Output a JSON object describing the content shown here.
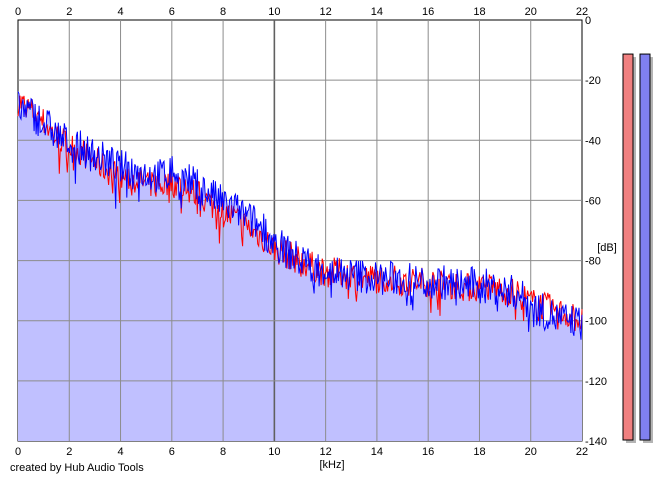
{
  "chart_data": {
    "type": "area",
    "xlabel": "[kHz]",
    "ylabel": "[dB]",
    "xlim": [
      0,
      22
    ],
    "ylim": [
      -140,
      0
    ],
    "x_ticks": [
      "0",
      "2",
      "4",
      "6",
      "8",
      "10",
      "12",
      "14",
      "16",
      "18",
      "20",
      "22"
    ],
    "y_ticks": [
      "0",
      "-20",
      "-40",
      "-60",
      "-80",
      "-100",
      "-120",
      "-140"
    ],
    "grid": true,
    "x": [
      0,
      0.5,
      1,
      1.5,
      2,
      2.5,
      3,
      3.5,
      4,
      4.5,
      5,
      5.5,
      6,
      6.5,
      7,
      7.5,
      8,
      8.5,
      9,
      9.5,
      10,
      10.5,
      11,
      11.5,
      12,
      12.5,
      13,
      13.5,
      14,
      14.5,
      15,
      15.5,
      16,
      16.5,
      17,
      17.5,
      18,
      18.5,
      19,
      19.5,
      20,
      20.5,
      21,
      21.5,
      22
    ],
    "series": [
      {
        "color": "#ff0000",
        "values": [
          -27,
          -30,
          -34,
          -39,
          -42,
          -44,
          -47,
          -50,
          -52,
          -53,
          -54,
          -55,
          -54,
          -56,
          -58,
          -61,
          -64,
          -66,
          -69,
          -72,
          -76,
          -78,
          -80,
          -82,
          -84,
          -84,
          -85,
          -86,
          -86,
          -86,
          -87,
          -87,
          -87,
          -88,
          -88,
          -89,
          -89,
          -89,
          -90,
          -91,
          -94,
          -95,
          -97,
          -98,
          -100
        ]
      },
      {
        "color": "#0000ff",
        "values": [
          -29,
          -31,
          -34,
          -38,
          -41,
          -43,
          -45,
          -47,
          -49,
          -50,
          -51,
          -52,
          -50,
          -53,
          -55,
          -58,
          -61,
          -63,
          -66,
          -69,
          -74,
          -77,
          -80,
          -82,
          -83,
          -84,
          -85,
          -85,
          -86,
          -86,
          -86,
          -87,
          -87,
          -87,
          -88,
          -88,
          -88,
          -89,
          -90,
          -91,
          -95,
          -97,
          -99,
          -100,
          -101
        ]
      }
    ],
    "level_meters": [
      {
        "color": "#f08080",
        "level_db": -8
      },
      {
        "color": "#8080f0",
        "level_db": -8
      }
    ],
    "fill_color": "#c0c0ff"
  },
  "credit": "created by Hub Audio Tools"
}
